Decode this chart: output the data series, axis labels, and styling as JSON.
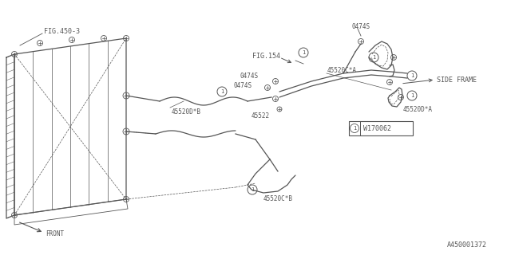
{
  "bg_color": "#ffffff",
  "line_color": "#555555",
  "fig_ref": "A450001372",
  "part_ref": "W170062",
  "labels": {
    "fig450": "FIG.450-3",
    "fig154": "FIG.154",
    "side_frame": "SIDE FRAME",
    "front": "FRONT",
    "p0474s_top": "0474S",
    "p0474s_mid1": "0474S",
    "p0474s_mid2": "0474S",
    "p45520dB": "45520D*B",
    "p45522": "45522",
    "p45520cA": "45520C*A",
    "p45520dA": "45520D*A",
    "p45520cB": "45520C*B"
  }
}
